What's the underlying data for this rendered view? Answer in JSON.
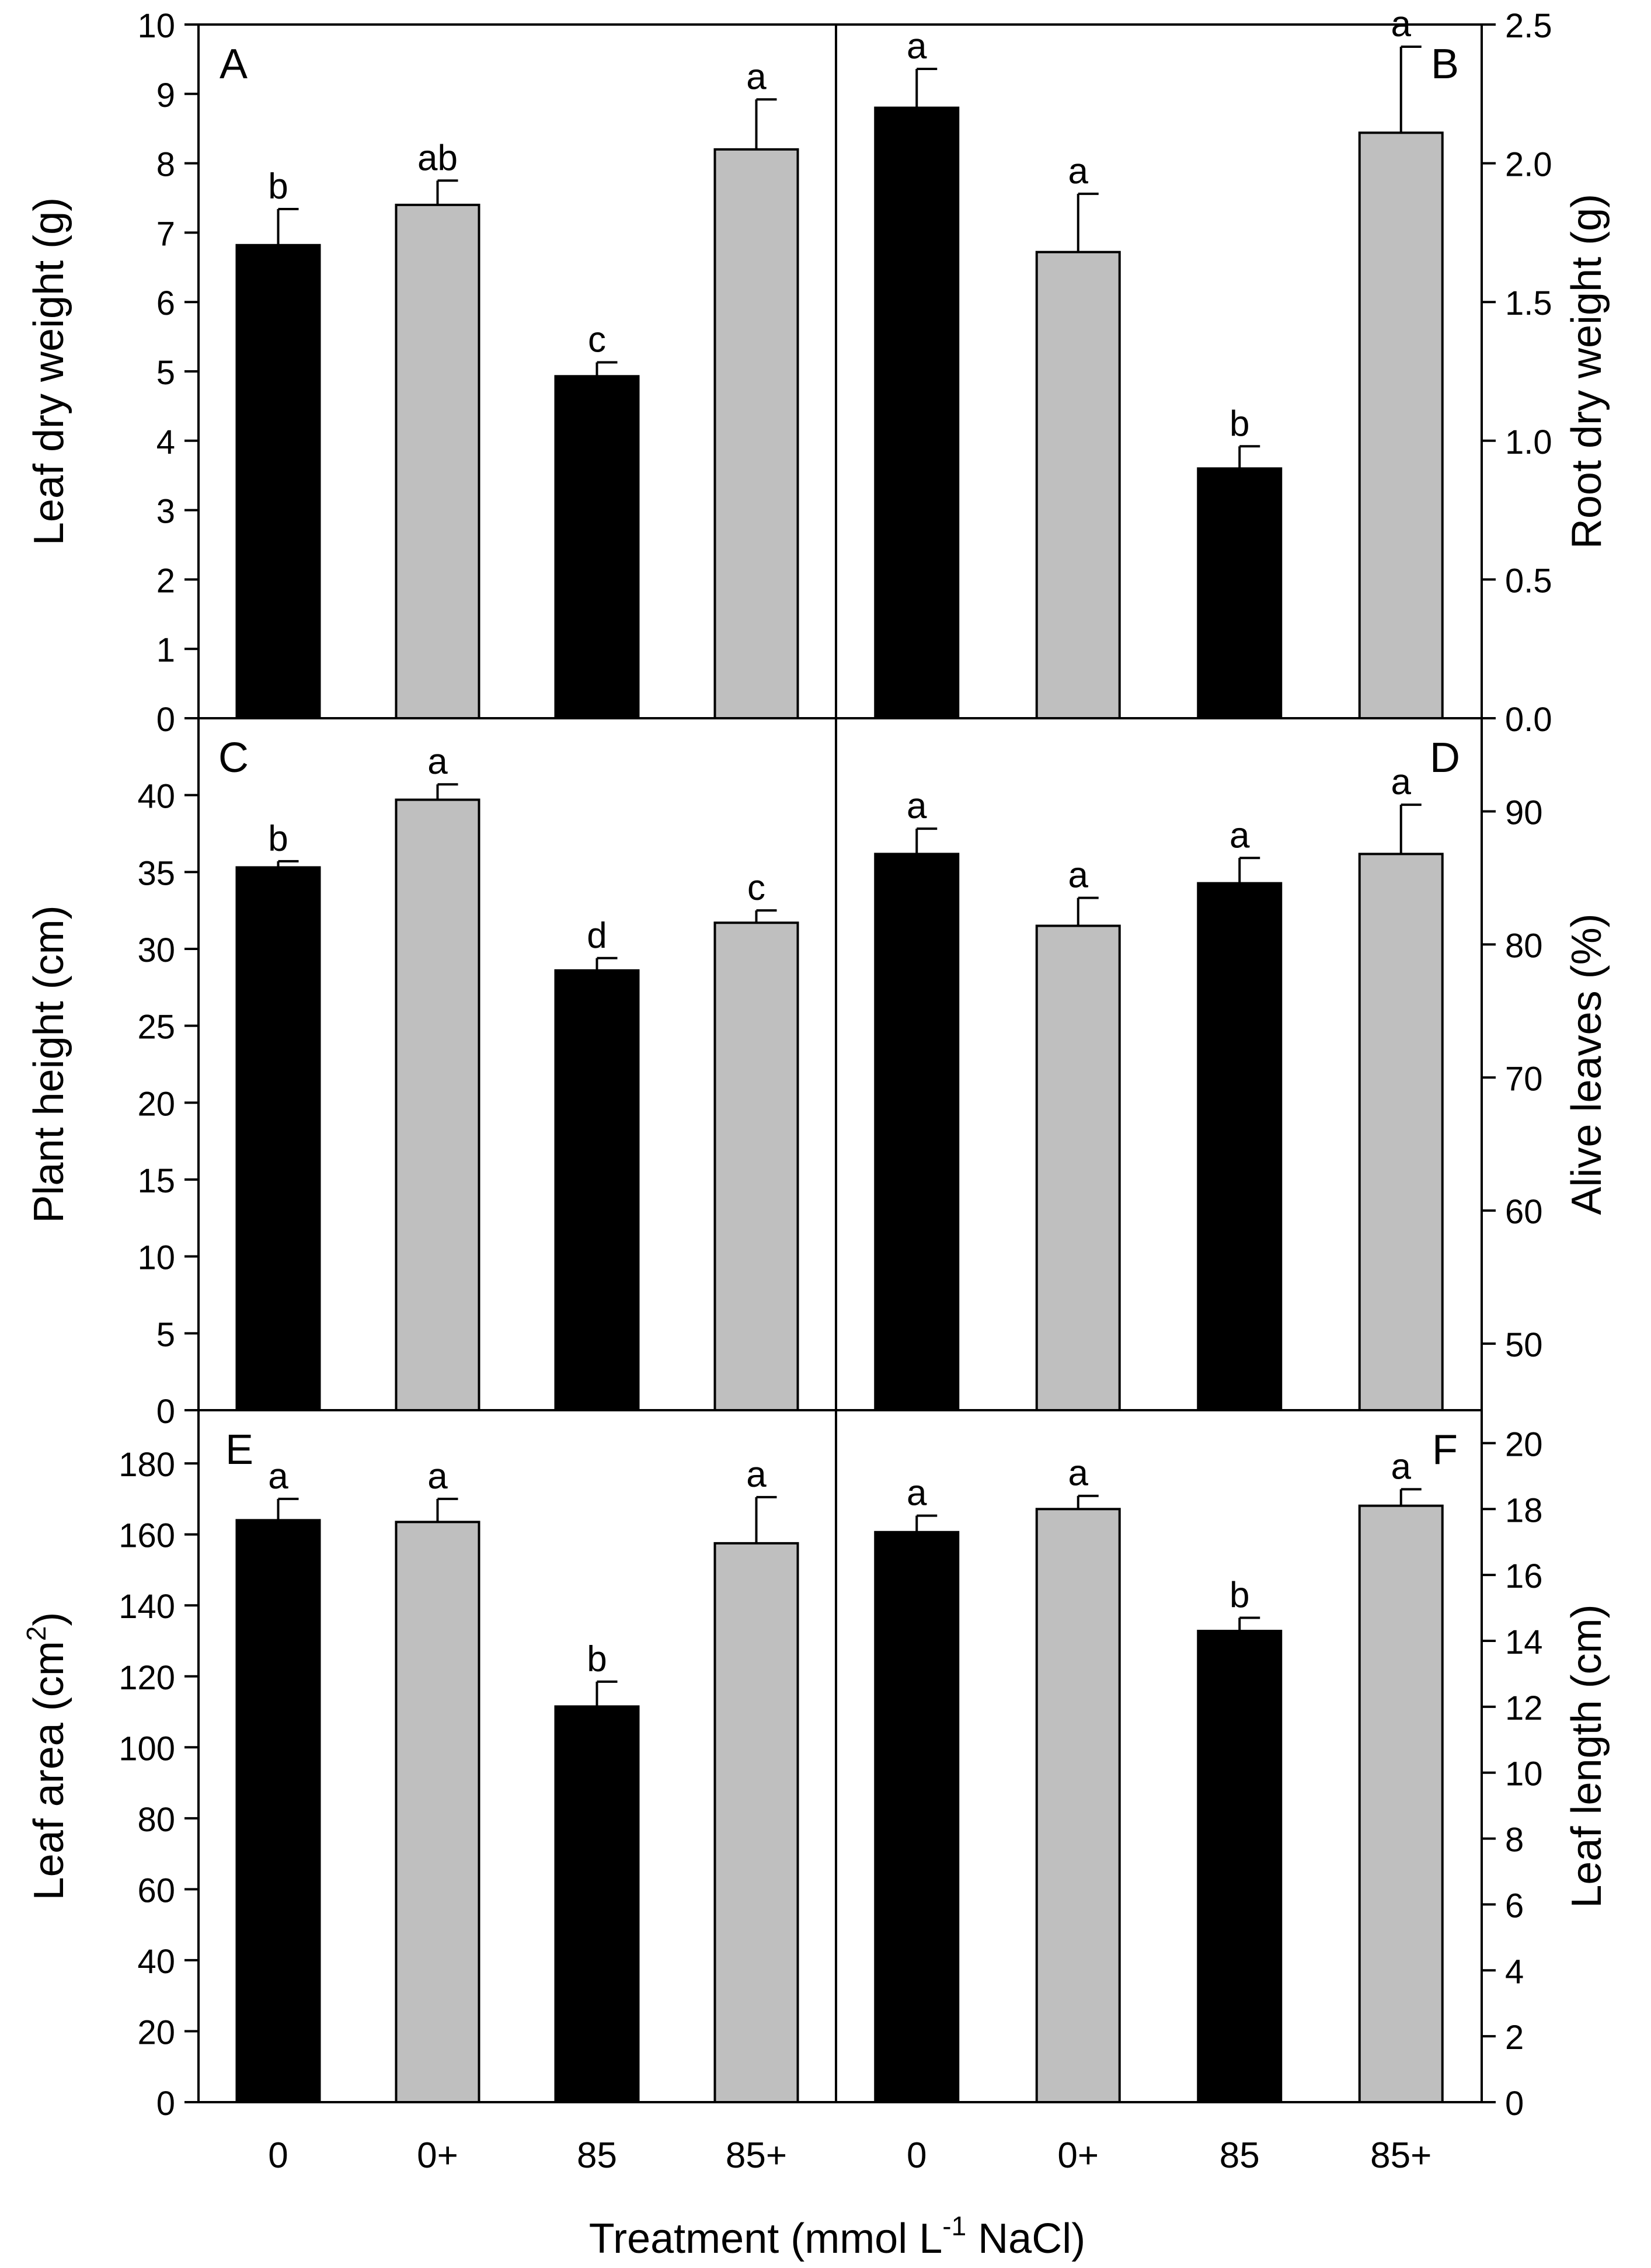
{
  "figure": {
    "x_axis_label_main": "Treatment (mmol L",
    "x_axis_label_sup": "-1",
    "x_axis_label_tail": " NaCl)"
  },
  "chart_data": [
    {
      "id": "A",
      "panel_letter": "A",
      "type": "bar",
      "axis_side": "left",
      "ylabel": "Leaf dry weight (g)",
      "categories": [
        "0",
        "0+",
        "85",
        "85+"
      ],
      "values": [
        6.82,
        7.4,
        4.93,
        8.2
      ],
      "errors": [
        0.52,
        0.35,
        0.2,
        0.72
      ],
      "letters": [
        "b",
        "ab",
        "c",
        "a"
      ],
      "colors": [
        "#000000",
        "#bfbfbf",
        "#000000",
        "#bfbfbf"
      ],
      "ylim": [
        0,
        10
      ],
      "ticks": [
        "0",
        "1",
        "2",
        "3",
        "4",
        "5",
        "6",
        "7",
        "8",
        "9",
        "10"
      ]
    },
    {
      "id": "B",
      "panel_letter": "B",
      "type": "bar",
      "axis_side": "right",
      "ylabel": "Root dry weight (g)",
      "categories": [
        "0",
        "0+",
        "85",
        "85+"
      ],
      "values": [
        2.2,
        1.68,
        0.9,
        2.11
      ],
      "errors": [
        0.14,
        0.21,
        0.08,
        0.31
      ],
      "letters": [
        "a",
        "a",
        "b",
        "a"
      ],
      "colors": [
        "#000000",
        "#bfbfbf",
        "#000000",
        "#bfbfbf"
      ],
      "ylim": [
        0,
        2.5
      ],
      "ticks": [
        "0.0",
        "0.5",
        "1.0",
        "1.5",
        "2.0",
        "2.5"
      ]
    },
    {
      "id": "C",
      "panel_letter": "C",
      "type": "bar",
      "axis_side": "left",
      "ylabel": "Plant height (cm)",
      "categories": [
        "0",
        "0+",
        "85",
        "85+"
      ],
      "values": [
        35.3,
        39.7,
        28.6,
        31.7
      ],
      "errors": [
        0.4,
        1.0,
        0.8,
        0.8
      ],
      "letters": [
        "b",
        "a",
        "d",
        "c"
      ],
      "colors": [
        "#000000",
        "#bfbfbf",
        "#000000",
        "#bfbfbf"
      ],
      "ylim": [
        0,
        45
      ],
      "ticks": [
        "0",
        "5",
        "10",
        "15",
        "20",
        "25",
        "30",
        "35",
        "40"
      ]
    },
    {
      "id": "D",
      "panel_letter": "D",
      "type": "bar",
      "axis_side": "right",
      "ylabel": "Alive leaves (%)",
      "categories": [
        "0",
        "0+",
        "85",
        "85+"
      ],
      "values": [
        86.8,
        81.4,
        84.6,
        86.8
      ],
      "errors": [
        1.9,
        2.1,
        1.9,
        3.7
      ],
      "letters": [
        "a",
        "a",
        "a",
        "a"
      ],
      "colors": [
        "#000000",
        "#bfbfbf",
        "#000000",
        "#bfbfbf"
      ],
      "ylim": [
        45,
        97
      ],
      "ticks": [
        "50",
        "60",
        "70",
        "80",
        "90"
      ]
    },
    {
      "id": "E",
      "panel_letter": "E",
      "type": "bar",
      "axis_side": "left",
      "ylabel_main": "Leaf area (cm",
      "ylabel_sup": "2",
      "ylabel_tail": ")",
      "categories": [
        "0",
        "0+",
        "85",
        "85+"
      ],
      "values": [
        164.0,
        163.5,
        111.5,
        157.5
      ],
      "errors": [
        6.0,
        6.5,
        7.0,
        13.0
      ],
      "letters": [
        "a",
        "a",
        "b",
        "a"
      ],
      "colors": [
        "#000000",
        "#bfbfbf",
        "#000000",
        "#bfbfbf"
      ],
      "ylim": [
        0,
        195
      ],
      "ticks": [
        "0",
        "20",
        "40",
        "60",
        "80",
        "100",
        "120",
        "140",
        "160",
        "180"
      ]
    },
    {
      "id": "F",
      "panel_letter": "F",
      "type": "bar",
      "axis_side": "right",
      "ylabel": "Leaf length (cm)",
      "categories": [
        "0",
        "0+",
        "85",
        "85+"
      ],
      "values": [
        17.3,
        18.0,
        14.3,
        18.1
      ],
      "errors": [
        0.5,
        0.4,
        0.4,
        0.5
      ],
      "letters": [
        "a",
        "a",
        "b",
        "a"
      ],
      "colors": [
        "#000000",
        "#bfbfbf",
        "#000000",
        "#bfbfbf"
      ],
      "ylim": [
        0,
        21
      ],
      "ticks": [
        "0",
        "2",
        "4",
        "6",
        "8",
        "10",
        "12",
        "14",
        "16",
        "18",
        "20"
      ]
    }
  ]
}
